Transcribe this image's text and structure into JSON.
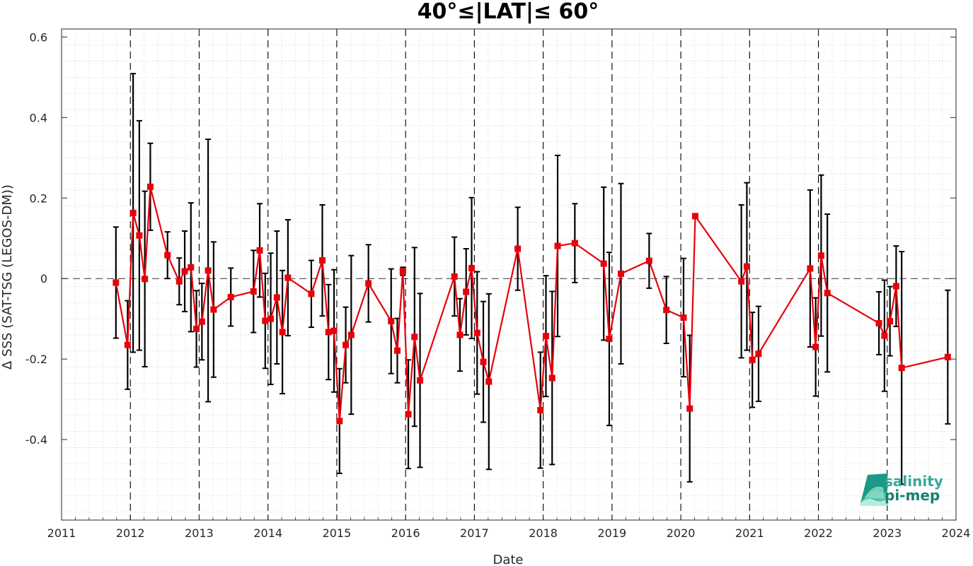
{
  "chart_data": {
    "type": "line",
    "title": "40°≤|LAT|≤ 60°",
    "xlabel": "Date",
    "ylabel": "Δ SSS (SAT-TSG (LEGOS-DM))",
    "xlim": [
      2011,
      2024
    ],
    "ylim": [
      -0.6,
      0.62
    ],
    "xticks": [
      "2011",
      "2012",
      "2013",
      "2014",
      "2015",
      "2016",
      "2017",
      "2018",
      "2019",
      "2020",
      "2021",
      "2022",
      "2023",
      "2024"
    ],
    "yticks": [
      {
        "v": -0.4,
        "label": "-0.4"
      },
      {
        "v": -0.2,
        "label": "-0.2"
      },
      {
        "v": 0,
        "label": "0"
      },
      {
        "v": 0.2,
        "label": "0.2"
      },
      {
        "v": 0.4,
        "label": "0.4"
      },
      {
        "v": 0.6,
        "label": "0.6"
      }
    ],
    "year_lines": [
      2012,
      2013,
      2014,
      2015,
      2016,
      2017,
      2018,
      2019,
      2020,
      2021,
      2022,
      2023
    ],
    "zero_line": 0,
    "grid": "minor dotted",
    "colors": {
      "series": "#e8000b",
      "errorbar": "#000000",
      "reference": "#000000"
    },
    "series": [
      {
        "x": [
          2011.79,
          2011.96,
          2012.04,
          2012.13,
          2012.21,
          2012.29,
          2012.54,
          2012.71,
          2012.79,
          2012.88,
          2012.96,
          2013.04,
          2013.13,
          2013.21,
          2013.46,
          2013.79,
          2013.88,
          2013.96,
          2014.04,
          2014.13,
          2014.21,
          2014.29,
          2014.63,
          2014.79,
          2014.88,
          2014.96,
          2015.04,
          2015.13,
          2015.21,
          2015.46,
          2015.79,
          2015.88,
          2015.96,
          2016.04,
          2016.13,
          2016.21,
          2016.71,
          2016.79,
          2016.88,
          2016.96,
          2017.04,
          2017.13,
          2017.21,
          2017.63,
          2017.96,
          2018.04,
          2018.13,
          2018.21,
          2018.46,
          2018.88,
          2018.96,
          2019.13,
          2019.54,
          2019.79,
          2020.04,
          2020.13,
          2020.21,
          2020.88,
          2020.96,
          2021.04,
          2021.13,
          2021.88,
          2021.96,
          2022.04,
          2022.13,
          2022.88,
          2022.96,
          2023.04,
          2023.13,
          2023.21,
          2023.88
        ],
        "y": [
          -0.01,
          -0.165,
          0.163,
          0.107,
          -0.001,
          0.228,
          0.058,
          -0.007,
          0.018,
          0.028,
          -0.125,
          -0.107,
          0.02,
          -0.077,
          -0.046,
          -0.032,
          0.07,
          -0.105,
          -0.1,
          -0.047,
          -0.133,
          0.002,
          -0.038,
          0.045,
          -0.133,
          -0.13,
          -0.354,
          -0.165,
          -0.14,
          -0.012,
          -0.106,
          -0.179,
          0.018,
          -0.337,
          -0.145,
          -0.253,
          0.005,
          -0.14,
          -0.033,
          0.026,
          -0.135,
          -0.207,
          -0.256,
          0.074,
          -0.327,
          -0.143,
          -0.247,
          0.081,
          0.088,
          0.037,
          -0.15,
          0.012,
          0.044,
          -0.078,
          -0.097,
          -0.323,
          0.155,
          -0.007,
          0.03,
          -0.202,
          -0.187,
          0.025,
          -0.17,
          0.057,
          -0.036,
          -0.111,
          -0.142,
          -0.106,
          -0.019,
          -0.222,
          -0.195
        ],
        "err": [
          0.138,
          0.11,
          0.346,
          0.285,
          0.218,
          0.108,
          0.058,
          0.058,
          0.1,
          0.16,
          0.095,
          0.095,
          0.326,
          0.168,
          0.072,
          0.102,
          0.116,
          0.118,
          0.163,
          0.165,
          0.153,
          0.144,
          0.083,
          0.138,
          0.118,
          0.152,
          0.13,
          0.094,
          0.197,
          0.096,
          0.13,
          0.08,
          0.01,
          0.135,
          0.222,
          0.216,
          0.098,
          0.09,
          0.107,
          0.175,
          0.152,
          0.15,
          0.218,
          0.103,
          0.144,
          0.15,
          0.215,
          0.225,
          0.098,
          0.19,
          0.215,
          0.224,
          0.068,
          0.083,
          0.147,
          0.182,
          0.005,
          0.19,
          0.208,
          0.118,
          0.118,
          0.195,
          0.122,
          0.2,
          0.196,
          0.078,
          0.138,
          0.086,
          0.1,
          0.289,
          0.166
        ]
      }
    ]
  },
  "logo": {
    "line1": "salinity",
    "line2": "pi-mep"
  }
}
